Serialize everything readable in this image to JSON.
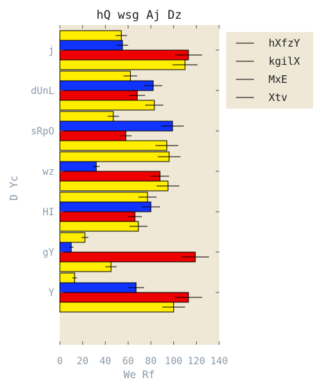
{
  "chart_data": {
    "type": "bar",
    "orientation": "horizontal",
    "title": "hQ wsg Aj Dz",
    "xlabel": "We Rf",
    "ylabel": "D Yc",
    "xlim": [
      0,
      140
    ],
    "xticks": [
      0,
      20,
      40,
      60,
      80,
      100,
      120,
      140
    ],
    "categories": [
      "Y",
      "gY",
      "HI",
      "wz",
      "sRpO",
      "dUnL",
      "j"
    ],
    "legend_position": "top-right, outside plot",
    "background_color": "#efe8d6",
    "series": [
      {
        "name": "hXfzY",
        "color": "#ffee00",
        "values": [
          100,
          45,
          69,
          95,
          94,
          83,
          110
        ],
        "errors": [
          10,
          5,
          8,
          10,
          10,
          8,
          11
        ]
      },
      {
        "name": "kgilX",
        "color": "#ee0000",
        "values": [
          113,
          119,
          66,
          88,
          58,
          68,
          113
        ],
        "errors": [
          12,
          12,
          6,
          8,
          5,
          7,
          12
        ]
      },
      {
        "name": "MxE",
        "color": "#1133ff",
        "values": [
          67,
          10,
          80,
          32,
          99,
          82,
          55
        ],
        "errors": [
          7,
          2,
          8,
          3,
          10,
          8,
          5
        ]
      },
      {
        "name": "Xtv",
        "color": "#ffee00",
        "values": [
          13,
          22,
          77,
          96,
          47,
          62,
          54
        ],
        "errors": [
          2,
          3,
          8,
          10,
          5,
          6,
          5
        ]
      }
    ]
  }
}
